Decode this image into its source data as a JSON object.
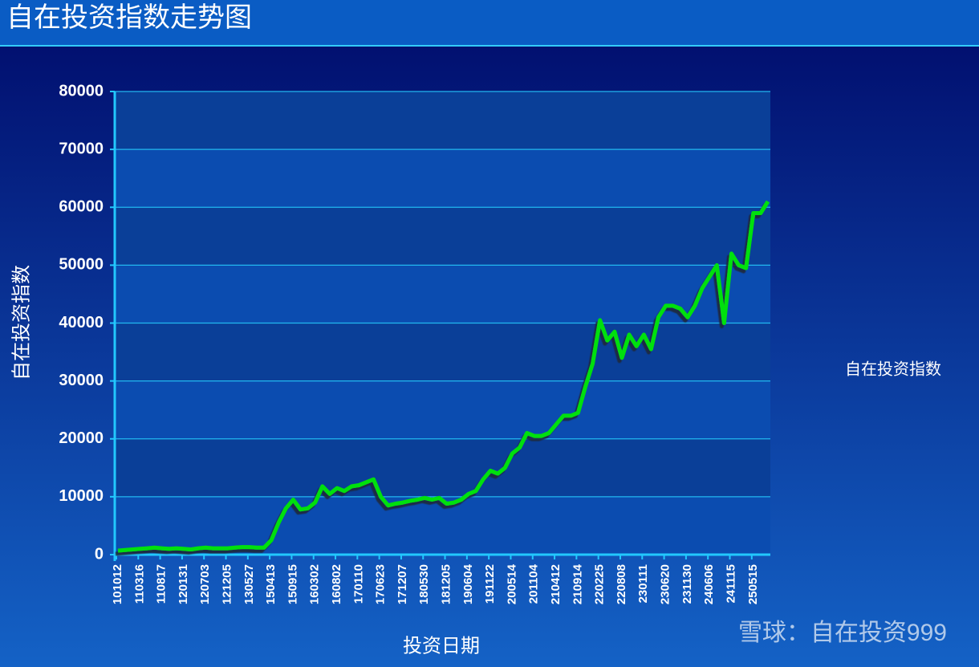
{
  "chart_data": {
    "type": "line",
    "title": "自在投资指数走势图",
    "x_label": "投资日期",
    "y_label": "自在投资指数",
    "categories": [
      "101012",
      null,
      null,
      "110316",
      null,
      null,
      "110817",
      null,
      null,
      "120131",
      null,
      null,
      "120703",
      null,
      null,
      "121205",
      null,
      null,
      "130527",
      null,
      null,
      "150413",
      null,
      null,
      "150915",
      null,
      null,
      "160302",
      null,
      null,
      "160802",
      null,
      null,
      "170110",
      null,
      null,
      "170623",
      null,
      null,
      "171207",
      null,
      null,
      "180530",
      null,
      null,
      "181205",
      null,
      null,
      "190604",
      null,
      null,
      "191122",
      null,
      null,
      "200514",
      null,
      null,
      "201104",
      null,
      null,
      "210412",
      null,
      null,
      "210914",
      null,
      null,
      "220225",
      null,
      null,
      "220808",
      null,
      null,
      "230111",
      null,
      null,
      "230620",
      null,
      null,
      "231130",
      null,
      null,
      "240606",
      null,
      null,
      "241115",
      null,
      null,
      "250515",
      null,
      null
    ],
    "series": [
      {
        "name": "自在投资指数",
        "color": "#00e010",
        "values": [
          700,
          800,
          900,
          1000,
          1100,
          1200,
          1100,
          1000,
          1100,
          1000,
          900,
          1100,
          1200,
          1100,
          1100,
          1100,
          1200,
          1300,
          1300,
          1200,
          1200,
          2500,
          5500,
          8000,
          9500,
          7800,
          8000,
          9000,
          11800,
          10500,
          11500,
          11000,
          11800,
          12000,
          12500,
          13000,
          10000,
          8500,
          8800,
          9000,
          9300,
          9500,
          9800,
          9500,
          9800,
          8800,
          9000,
          9500,
          10500,
          11000,
          13000,
          14500,
          14000,
          15000,
          17500,
          18500,
          21000,
          20500,
          20500,
          21000,
          22500,
          24000,
          24000,
          24500,
          29000,
          33000,
          40500,
          37000,
          38500,
          34000,
          38000,
          36000,
          38000,
          35500,
          41000,
          43000,
          43000,
          42500,
          41000,
          43000,
          46000,
          48000,
          50000,
          40000,
          52000,
          50000,
          49500,
          59000,
          59000,
          61000
        ]
      }
    ],
    "ylim": [
      0,
      80000
    ],
    "yticks": [
      0,
      10000,
      20000,
      30000,
      40000,
      50000,
      60000,
      70000,
      80000
    ],
    "grid": true,
    "legend": "right",
    "watermark": "雪球：自在投资999"
  }
}
